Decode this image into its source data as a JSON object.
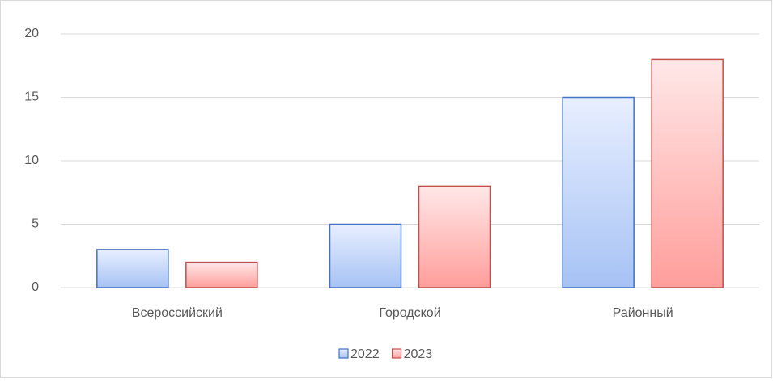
{
  "chart_data": {
    "type": "bar",
    "categories": [
      "Всероссийский",
      "Городской",
      "Районный"
    ],
    "series": [
      {
        "name": "2022",
        "color": "#4472c4",
        "values": [
          3,
          5,
          15
        ]
      },
      {
        "name": "2023",
        "color": "#c0504d",
        "values": [
          2,
          8,
          18
        ]
      }
    ],
    "ylim": [
      0,
      20
    ],
    "yticks": [
      0,
      5,
      10,
      15,
      20
    ],
    "grid": true,
    "legend": "bottom"
  }
}
